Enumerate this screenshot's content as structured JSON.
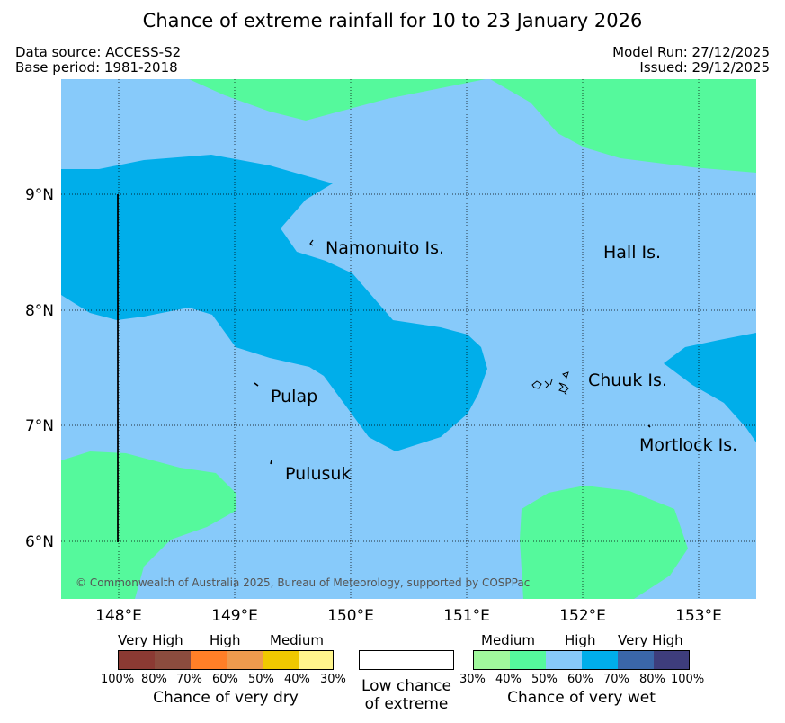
{
  "title": "Chance of extreme rainfall for 10 to 23 January 2026",
  "meta": {
    "data_source": "Data source: ACCESS-S2",
    "base_period": "Base period: 1981-2018",
    "model_run": "Model Run: 27/12/2025",
    "issued": "Issued: 29/12/2025"
  },
  "map": {
    "places": [
      "Namonuito Is.",
      "Hall Is.",
      "Pulap",
      "Chuuk Is.",
      "Pulusuk",
      "Mortlock Is."
    ],
    "lon_ticks": [
      "148°E",
      "149°E",
      "150°E",
      "151°E",
      "152°E",
      "153°E"
    ],
    "lat_ticks": [
      "9°N",
      "8°N",
      "7°N",
      "6°N"
    ],
    "copyright": "© Commonwealth of Australia 2025, Bureau of Meteorology, supported by COSPPac",
    "colors": {
      "background": "#87CAFA",
      "wet_40_50": "#55F99C",
      "wet_60_70": "#00AEEA"
    }
  },
  "legend": {
    "dry": {
      "categories": [
        "Very High",
        "High",
        "Medium"
      ],
      "percents": [
        "100%",
        "80%",
        "70%",
        "60%",
        "50%",
        "40%",
        "30%"
      ],
      "colors": [
        "#8B3A33",
        "#8B4C3E",
        "#FF7F27",
        "#EE9A4D",
        "#F0C800",
        "#FFF58C"
      ],
      "caption": "Chance of very dry"
    },
    "low": {
      "caption_line1": "Low chance",
      "caption_line2": "of extreme"
    },
    "wet": {
      "categories": [
        "Medium",
        "High",
        "Very High"
      ],
      "percents": [
        "30%",
        "40%",
        "50%",
        "60%",
        "70%",
        "80%",
        "100%"
      ],
      "colors": [
        "#A0F89C",
        "#55F99C",
        "#87CAFA",
        "#00AEEA",
        "#3A66A8",
        "#3E3D7C"
      ],
      "caption": "Chance of very wet"
    }
  }
}
